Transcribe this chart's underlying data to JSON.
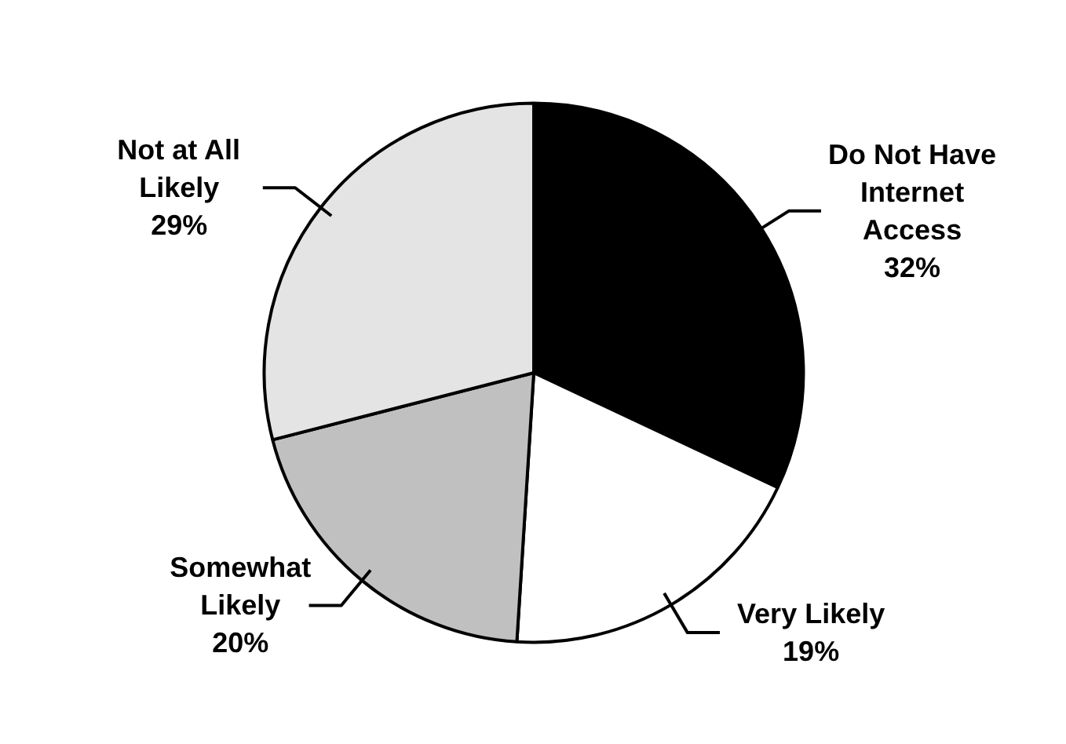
{
  "chart_data": {
    "type": "pie",
    "categories": [
      "Do Not Have Internet Access",
      "Very Likely",
      "Somewhat Likely",
      "Not at All Likely"
    ],
    "values": [
      32,
      19,
      20,
      29
    ],
    "colors": [
      "#000000",
      "#ffffff",
      "#c0c0c0",
      "#e4e4e4"
    ],
    "value_labels": [
      "32%",
      "19%",
      "20%",
      "29%"
    ]
  }
}
